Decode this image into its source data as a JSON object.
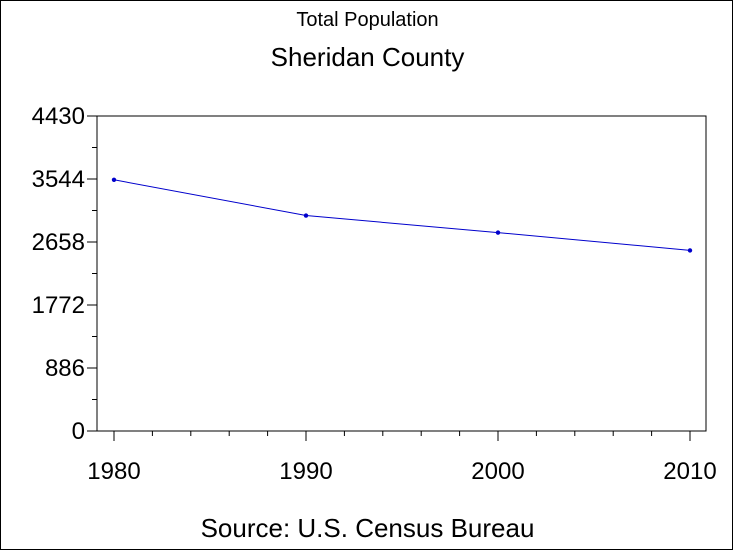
{
  "chart_data": {
    "type": "line",
    "subtitle": "Total Population",
    "title": "Sheridan County",
    "source": "Source: U.S. Census Bureau",
    "xlabel": "",
    "ylabel": "",
    "x": [
      1980,
      1990,
      2000,
      2010
    ],
    "series": [
      {
        "values": [
          3533,
          3030,
          2790,
          2540
        ],
        "color": "#0000cc"
      }
    ],
    "x_ticks": [
      "1980",
      "1990",
      "2000",
      "2010"
    ],
    "x_range": [
      1980,
      2010
    ],
    "y_ticks": [
      "0",
      "886",
      "1772",
      "2658",
      "3544",
      "4430"
    ],
    "y_tick_values": [
      0,
      886,
      1772,
      2658,
      3544,
      4430
    ],
    "ylim": [
      0,
      4430
    ],
    "grid": false,
    "legend": "none"
  }
}
